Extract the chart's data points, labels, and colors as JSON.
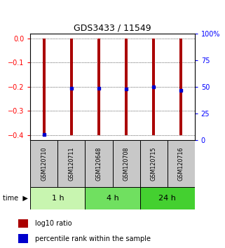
{
  "title": "GDS3433 / 11549",
  "samples": [
    "GSM120710",
    "GSM120711",
    "GSM120648",
    "GSM120708",
    "GSM120715",
    "GSM120716"
  ],
  "log10_ratios": [
    -0.4,
    -0.4,
    -0.4,
    -0.4,
    -0.4,
    -0.4
  ],
  "log10_tops": [
    0.0,
    0.0,
    0.0,
    0.0,
    0.0,
    0.0
  ],
  "percentile_y": [
    -0.398,
    -0.205,
    -0.205,
    -0.21,
    -0.2,
    -0.215
  ],
  "ylim": [
    -0.42,
    0.02
  ],
  "yticks_left": [
    0,
    -0.1,
    -0.2,
    -0.3,
    -0.4
  ],
  "yticks_right": [
    0,
    25,
    50,
    75,
    100
  ],
  "time_groups": [
    {
      "label": "1 h",
      "start": 0,
      "end": 2,
      "color": "#c8f5b0"
    },
    {
      "label": "4 h",
      "start": 2,
      "end": 4,
      "color": "#70e060"
    },
    {
      "label": "24 h",
      "start": 4,
      "end": 6,
      "color": "#44d030"
    }
  ],
  "bar_color": "#aa0000",
  "dot_color": "#0000cc",
  "bar_width": 0.12,
  "label_area_color": "#c8c8c8",
  "legend_bar_label": "log10 ratio",
  "legend_dot_label": "percentile rank within the sample"
}
